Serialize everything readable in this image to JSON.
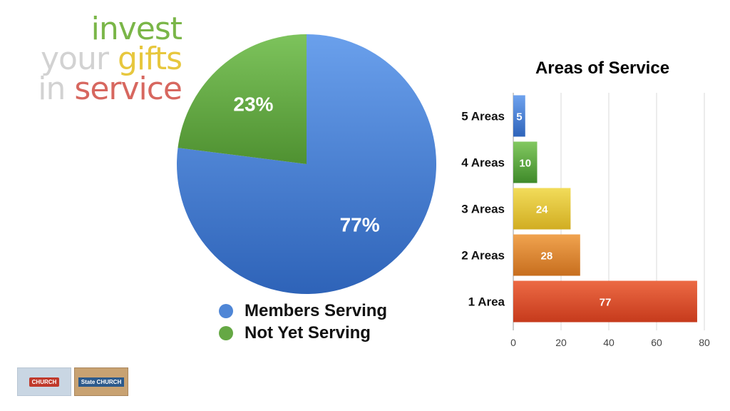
{
  "tagline": {
    "line1": "invest",
    "line2a": "your",
    "line2b": "gifts",
    "line3a": "in",
    "line3b": "service"
  },
  "colors": {
    "blue": "#4f86d6",
    "green": "#65a844",
    "yellow": "#e4c83a",
    "orange": "#e08a33",
    "red": "#de5030"
  },
  "chart_data": [
    {
      "type": "pie",
      "slices": [
        {
          "name": "Members Serving",
          "value": 77,
          "label": "77%",
          "color": "#4f86d6"
        },
        {
          "name": "Not Yet Serving",
          "value": 23,
          "label": "23%",
          "color": "#65a844"
        }
      ],
      "legend": [
        "Members Serving",
        "Not Yet Serving"
      ],
      "legend_position": "bottom"
    },
    {
      "type": "bar",
      "orientation": "horizontal",
      "title": "Areas of Service",
      "categories": [
        "5 Areas",
        "4 Areas",
        "3 Areas",
        "2 Areas",
        "1 Area"
      ],
      "values": [
        5,
        10,
        24,
        28,
        77
      ],
      "colors": [
        "#4f86d6",
        "#65a844",
        "#e4c83a",
        "#e08a33",
        "#de5030"
      ],
      "xlim": [
        0,
        80
      ],
      "xticks": [
        0,
        20,
        40,
        60,
        80
      ],
      "grid": true
    }
  ],
  "logos": {
    "logo1_text": "CHURCH",
    "logo2_text": "State CHURCH"
  }
}
